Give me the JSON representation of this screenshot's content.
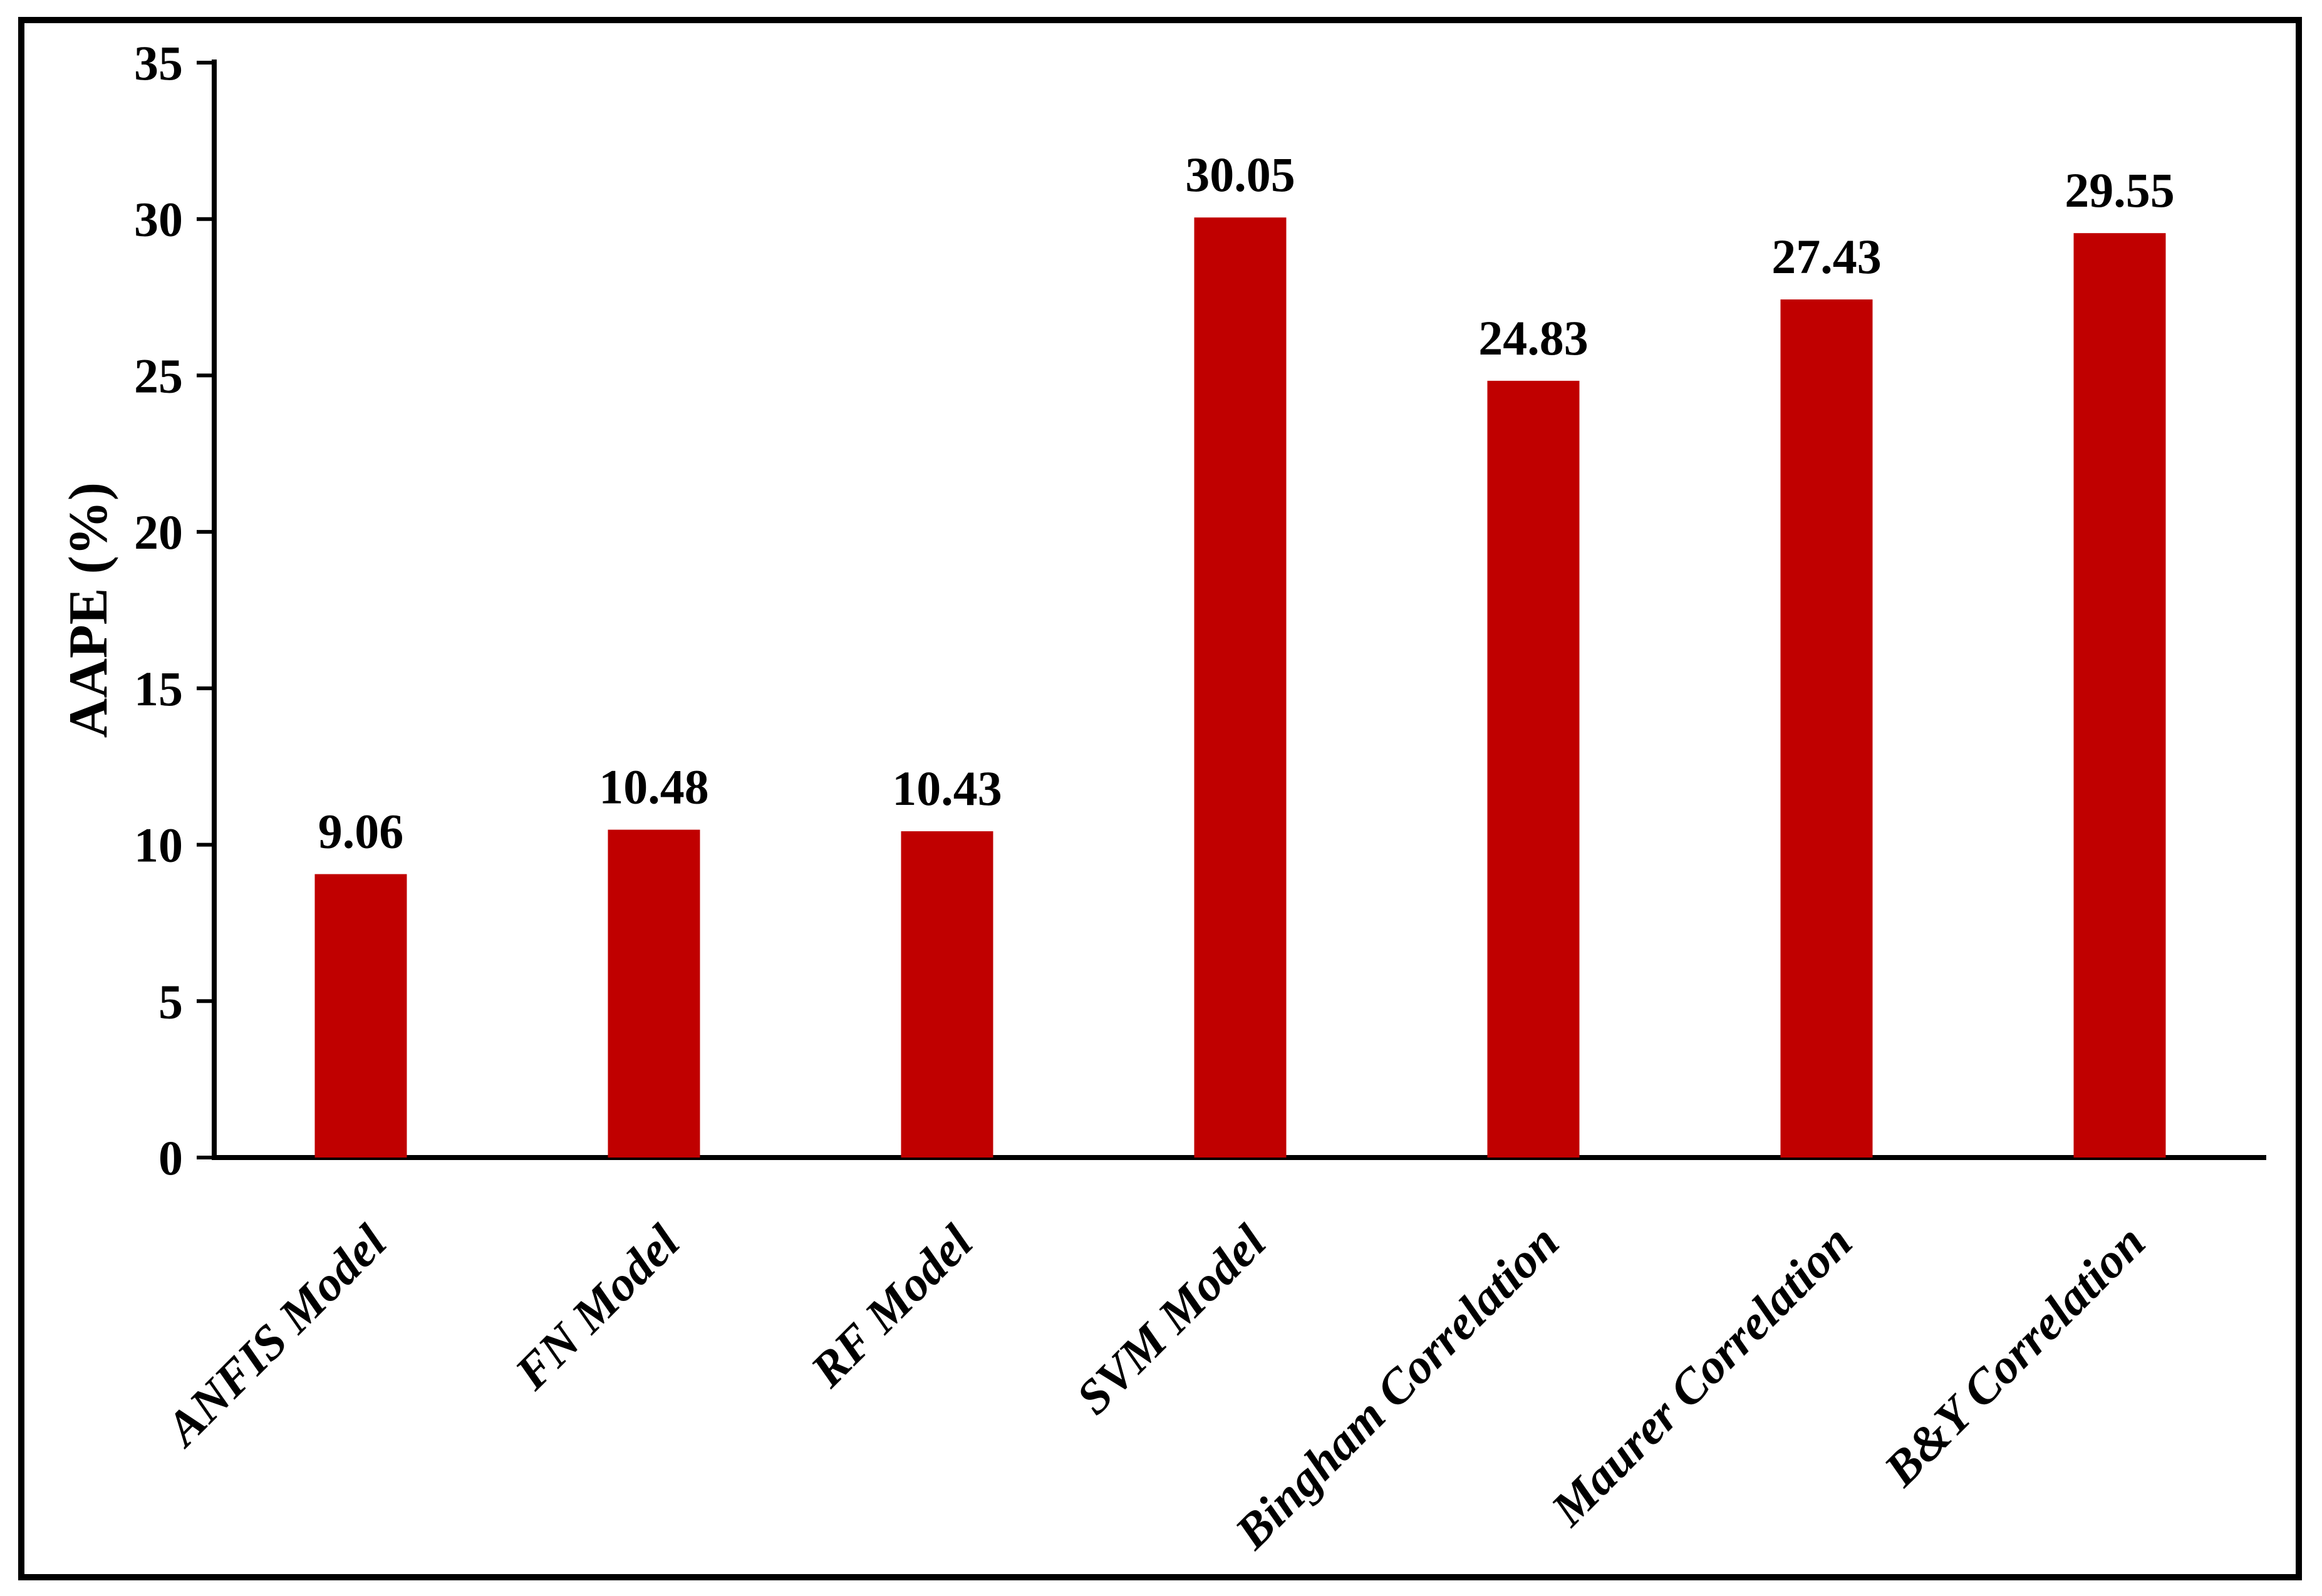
{
  "figure": {
    "background": "#ffffff",
    "frame_color": "#000000"
  },
  "chart_data": {
    "type": "bar",
    "title": "",
    "categories": [
      "ANFIS Model",
      "FN Model",
      "RF Model",
      "SVM Model",
      "Bingham Correlation",
      "Maurer Correlation",
      "B&Y Correlation"
    ],
    "values": [
      9.06,
      10.48,
      10.43,
      30.05,
      24.83,
      27.43,
      29.55
    ],
    "value_labels": [
      "9.06",
      "10.48",
      "10.43",
      "30.05",
      "24.83",
      "27.43",
      "29.55"
    ],
    "xlabel": "",
    "ylabel": "AAPE (%)",
    "ylim": [
      0,
      35
    ],
    "ytick_step": 5,
    "ytick_labels": [
      "0",
      "5",
      "10",
      "15",
      "20",
      "25",
      "30",
      "35"
    ],
    "bar_color": "#c00000",
    "axis_color": "#000000",
    "label_color": "#000000",
    "grid": false,
    "legend": null,
    "category_label_rotation_deg": 45
  }
}
